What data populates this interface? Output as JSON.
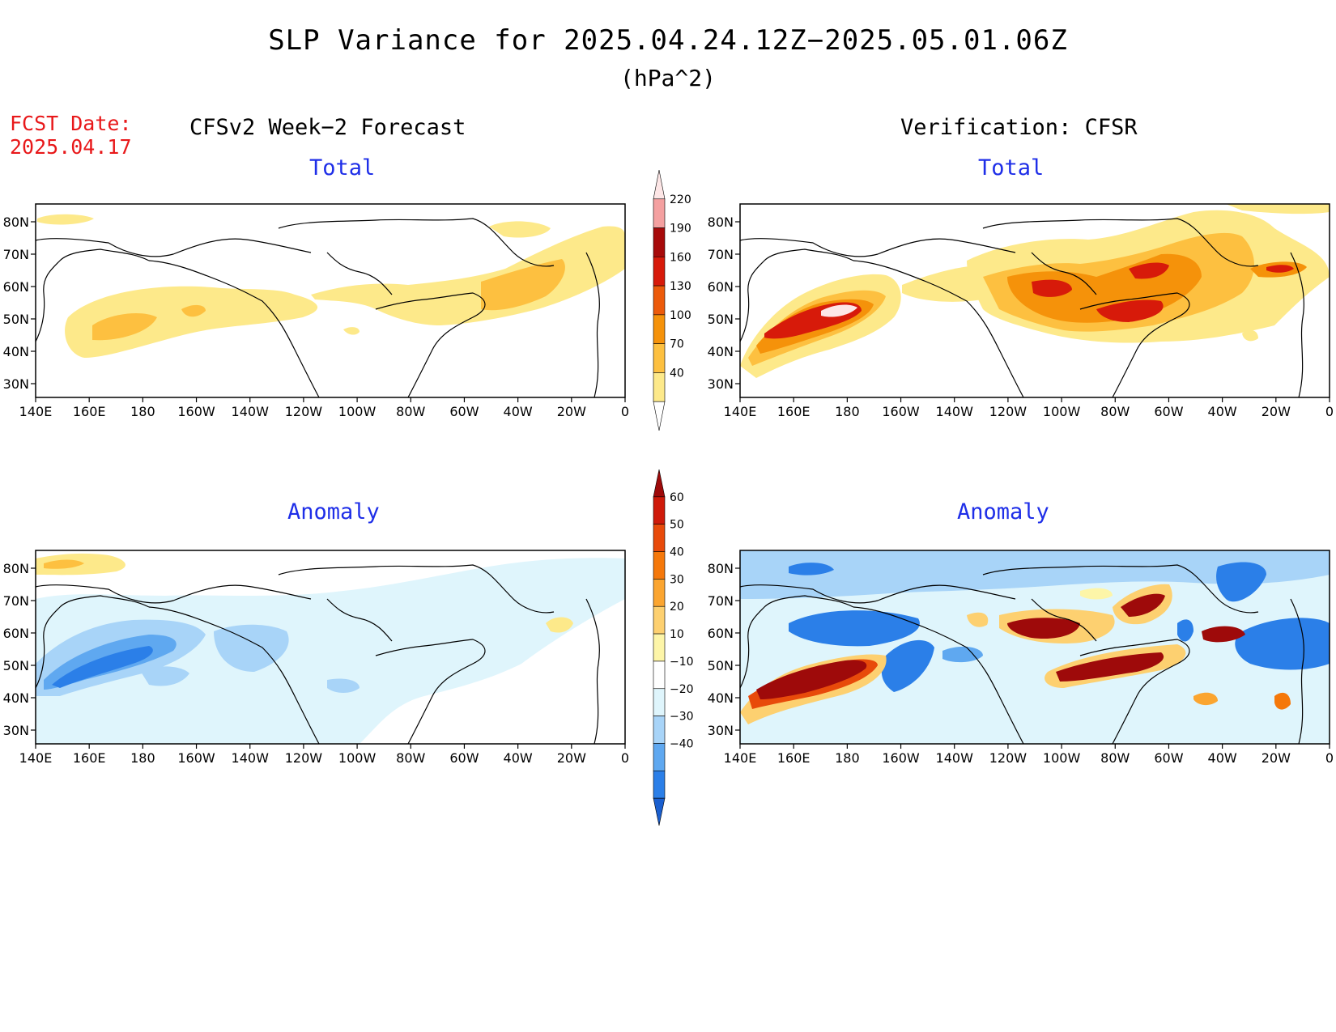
{
  "header": {
    "title": "SLP Variance for 2025.04.24.12Z−2025.05.01.06Z",
    "units": "(hPa^2)",
    "fcst_label": "FCST Date:",
    "fcst_date": "2025.04.17",
    "left_column": "CFSv2 Week−2 Forecast",
    "right_column": "Verification: CFSR"
  },
  "panel_titles": {
    "total": "Total",
    "anomaly": "Anomaly"
  },
  "axes": {
    "lat_labels": [
      "80N",
      "70N",
      "60N",
      "50N",
      "40N",
      "30N"
    ],
    "lon_labels": [
      "140E",
      "160E",
      "180",
      "160W",
      "140W",
      "120W",
      "100W",
      "80W",
      "60W",
      "40W",
      "20W",
      "0"
    ]
  },
  "colorbars": {
    "total": {
      "levels": [
        "40",
        "70",
        "100",
        "130",
        "160",
        "190",
        "220"
      ],
      "colors": [
        "#ffffff",
        "#fde98a",
        "#fdc040",
        "#f5920a",
        "#ec5a0a",
        "#d71a0a",
        "#a70a0a",
        "#f4a0a0",
        "#fde6e6"
      ]
    },
    "anomaly": {
      "levels": [
        "−40",
        "−30",
        "−20",
        "−10",
        "10",
        "20",
        "30",
        "40",
        "50",
        "60"
      ],
      "colors": [
        "#1a5fcf",
        "#2b7fe8",
        "#5fa8f0",
        "#a8d4f8",
        "#dff5fc",
        "#ffffff",
        "#fdf5a8",
        "#fdd070",
        "#fba530",
        "#f5780a",
        "#e84a0a",
        "#cf1a0a",
        "#9e0a0a"
      ]
    }
  }
}
